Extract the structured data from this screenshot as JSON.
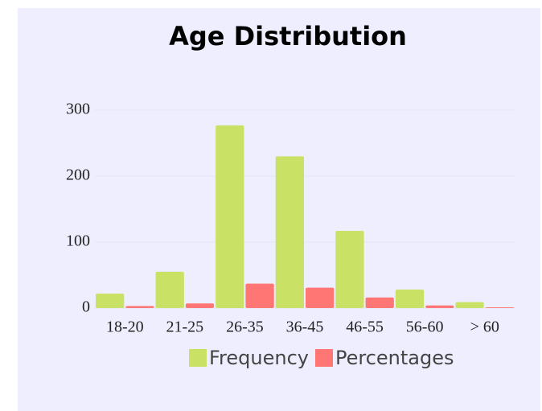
{
  "chart_data": {
    "type": "bar",
    "title": "Age Distribution",
    "categories": [
      "18-20",
      "21-25",
      "26-35",
      "36-45",
      "46-55",
      "56-60",
      "> 60"
    ],
    "series": [
      {
        "name": "Frequency",
        "color": "#c9e265",
        "values": [
          22,
          55,
          277,
          230,
          117,
          28,
          9
        ]
      },
      {
        "name": "Percentages",
        "color": "#ff7675",
        "values": [
          3,
          7,
          37,
          31,
          16,
          4,
          1
        ]
      }
    ],
    "ylim": [
      0,
      300
    ],
    "yticks": [
      0,
      100,
      200,
      300
    ],
    "grid": true,
    "legend": "bottom"
  }
}
